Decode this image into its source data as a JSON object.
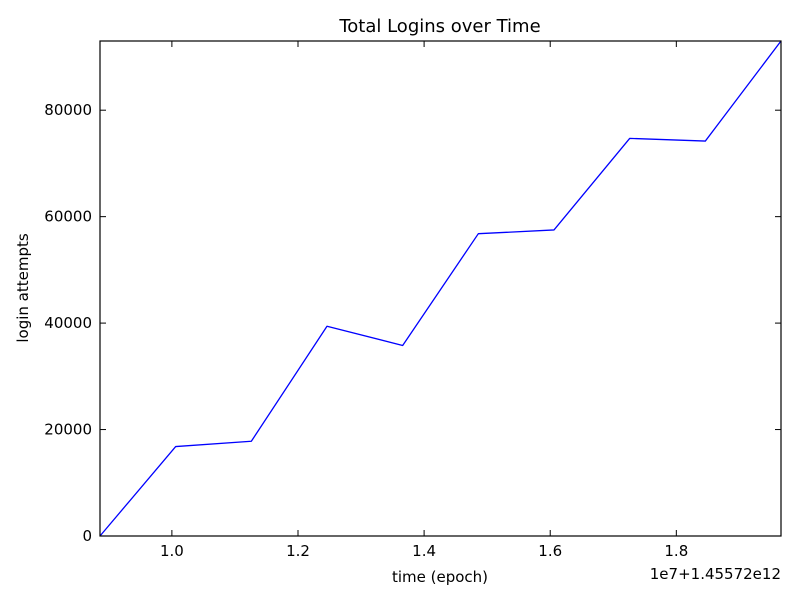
{
  "chart_data": {
    "type": "line",
    "title": "Total Logins over Time",
    "xlabel": "time (epoch)",
    "ylabel": "login attempts",
    "x_offset_text": "1e7+1.45572e12",
    "xlim": [
      0.886,
      1.966
    ],
    "ylim": [
      0,
      93000
    ],
    "x_ticks": [
      1.0,
      1.2,
      1.4,
      1.6,
      1.8
    ],
    "x_tick_labels": [
      "1.0",
      "1.2",
      "1.4",
      "1.6",
      "1.8"
    ],
    "y_ticks": [
      0,
      20000,
      40000,
      60000,
      80000
    ],
    "y_tick_labels": [
      "0",
      "20000",
      "40000",
      "60000",
      "80000"
    ],
    "grid": false,
    "series": [
      {
        "color": "#0000ff",
        "x": [
          0.886,
          1.006,
          1.126,
          1.246,
          1.366,
          1.486,
          1.606,
          1.726,
          1.846,
          1.966
        ],
        "y": [
          0,
          16800,
          17800,
          39400,
          35800,
          56800,
          57500,
          74700,
          74200,
          93000
        ]
      }
    ]
  }
}
